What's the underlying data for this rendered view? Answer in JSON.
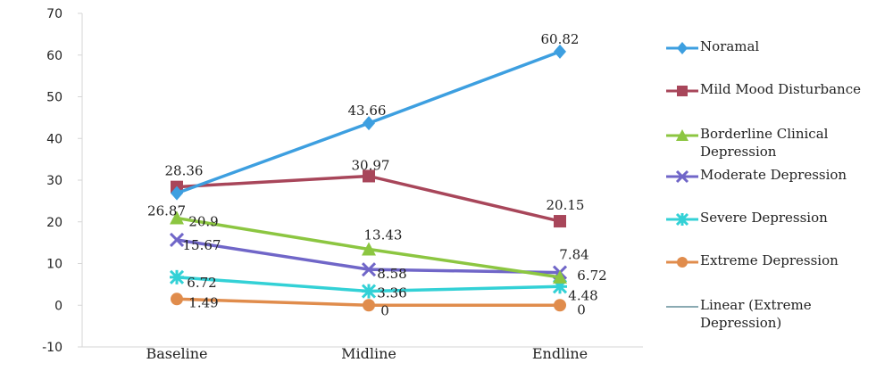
{
  "chart_data": {
    "type": "line",
    "categories": [
      "Baseline",
      "Midline",
      "Endline"
    ],
    "ylim": [
      -10,
      70
    ],
    "yticks": [
      -10,
      0,
      10,
      20,
      30,
      40,
      50,
      60,
      70
    ],
    "grid": false,
    "legend_position": "right",
    "series": [
      {
        "name": "Noramal",
        "values": [
          26.87,
          43.66,
          60.82
        ],
        "color": "#3d9fe0",
        "marker": "diamond",
        "labels": [
          "26.87",
          "43.66",
          "60.82"
        ]
      },
      {
        "name": "Mild Mood Disturbance",
        "values": [
          28.36,
          30.97,
          20.15
        ],
        "color": "#a8465a",
        "marker": "square",
        "labels": [
          "28.36",
          "30.97",
          "20.15"
        ]
      },
      {
        "name": "Borderline Clinical Depression",
        "values": [
          20.9,
          13.43,
          6.72
        ],
        "color": "#8cc641",
        "marker": "triangle",
        "labels": [
          "20.9",
          "13.43",
          "6.72"
        ]
      },
      {
        "name": "Moderate Depression",
        "values": [
          15.67,
          8.58,
          7.84
        ],
        "color": "#7066c8",
        "marker": "x",
        "labels": [
          "15.67",
          "8.58",
          "7.84"
        ]
      },
      {
        "name": "Severe Depression",
        "values": [
          6.72,
          3.36,
          4.48
        ],
        "color": "#33d1d6",
        "marker": "star",
        "labels": [
          "6.72",
          "3.36",
          "4.48"
        ]
      },
      {
        "name": "Extreme Depression",
        "values": [
          1.49,
          0,
          0
        ],
        "color": "#e08c4c",
        "marker": "circle",
        "labels": [
          "1.49",
          "0",
          "0"
        ]
      }
    ],
    "trendline": {
      "name": "Linear (Extreme Depression)",
      "color": "#8aaab2"
    }
  }
}
